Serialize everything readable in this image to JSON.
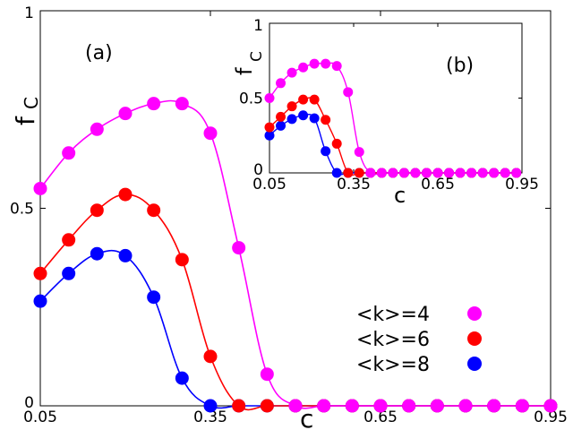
{
  "chart_data": [
    {
      "type": "line",
      "panel": "main",
      "panel_label": "(a)",
      "xlabel": "c",
      "ylabel": {
        "main": "f",
        "sub": "C"
      },
      "xlim": [
        0.05,
        0.95
      ],
      "ylim": [
        0,
        1
      ],
      "xticks": [
        0.05,
        0.35,
        0.65,
        0.95
      ],
      "xtick_labels": [
        "0.05",
        "0.35",
        "0.65",
        "0.95"
      ],
      "yticks": [
        0,
        0.5,
        1
      ],
      "ytick_labels": [
        "0",
        "0.5",
        "1"
      ],
      "x": [
        0.05,
        0.1,
        0.15,
        0.2,
        0.25,
        0.3,
        0.35,
        0.4,
        0.45,
        0.5,
        0.55,
        0.6,
        0.65,
        0.7,
        0.75,
        0.8,
        0.85,
        0.9,
        0.95
      ],
      "series": [
        {
          "name": "<k>=4",
          "color": "#ff00ff",
          "values": [
            0.55,
            0.64,
            0.7,
            0.74,
            0.765,
            0.765,
            0.69,
            0.4,
            0.08,
            0.0,
            0.0,
            0.0,
            0.0,
            0.0,
            0.0,
            0.0,
            0.0,
            0.0,
            0.0
          ]
        },
        {
          "name": "<k>=6",
          "color": "#ff0000",
          "values": [
            0.335,
            0.42,
            0.495,
            0.535,
            0.495,
            0.37,
            0.125,
            0.0,
            0.0,
            0.0,
            0.0,
            0.0,
            0.0,
            0.0,
            0.0,
            0.0,
            0.0,
            0.0,
            0.0
          ]
        },
        {
          "name": "<k>=8",
          "color": "#0000ff",
          "values": [
            0.265,
            0.335,
            0.385,
            0.38,
            0.275,
            0.07,
            0.0,
            0.0,
            0.0,
            0.0,
            0.0,
            0.0,
            0.0,
            0.0,
            0.0,
            0.0,
            0.0,
            0.0,
            0.0
          ]
        }
      ],
      "legend": {
        "position": "bottom-right",
        "entries": [
          "<k>=4",
          "<k>=6",
          "<k>=8"
        ]
      }
    },
    {
      "type": "line",
      "panel": "inset",
      "panel_label": "(b)",
      "xlabel": "c",
      "ylabel": {
        "main": "f",
        "sub": "C"
      },
      "xlim": [
        0.05,
        0.95
      ],
      "ylim": [
        0,
        1
      ],
      "xticks": [
        0.05,
        0.35,
        0.65,
        0.95
      ],
      "xtick_labels": [
        "0.05",
        "0.35",
        "0.65",
        "0.95"
      ],
      "yticks": [
        0,
        0.5,
        1
      ],
      "ytick_labels": [
        "0",
        "0.5",
        "1"
      ],
      "x": [
        0.05,
        0.09,
        0.13,
        0.17,
        0.21,
        0.25,
        0.29,
        0.33,
        0.37,
        0.41,
        0.45,
        0.49,
        0.53,
        0.57,
        0.61,
        0.65,
        0.69,
        0.73,
        0.77,
        0.81,
        0.85,
        0.89,
        0.93
      ],
      "series": [
        {
          "name": "<k>=4",
          "color": "#ff00ff",
          "values": [
            0.5,
            0.6,
            0.67,
            0.705,
            0.73,
            0.73,
            0.715,
            0.54,
            0.14,
            0.0,
            0.0,
            0.0,
            0.0,
            0.0,
            0.0,
            0.0,
            0.0,
            0.0,
            0.0,
            0.0,
            0.0,
            0.0,
            0.0
          ]
        },
        {
          "name": "<k>=6",
          "color": "#ff0000",
          "values": [
            0.305,
            0.375,
            0.445,
            0.49,
            0.49,
            0.355,
            0.195,
            0.0,
            0.0,
            0.0,
            0.0,
            0.0,
            0.0,
            0.0,
            0.0,
            0.0,
            0.0,
            0.0,
            0.0,
            0.0,
            0.0,
            0.0,
            0.0
          ]
        },
        {
          "name": "<k>=8",
          "color": "#0000ff",
          "values": [
            0.25,
            0.315,
            0.36,
            0.385,
            0.365,
            0.145,
            0.0,
            0.0,
            0.0,
            0.0,
            0.0,
            0.0,
            0.0,
            0.0,
            0.0,
            0.0,
            0.0,
            0.0,
            0.0,
            0.0,
            0.0,
            0.0,
            0.0
          ]
        }
      ]
    }
  ]
}
